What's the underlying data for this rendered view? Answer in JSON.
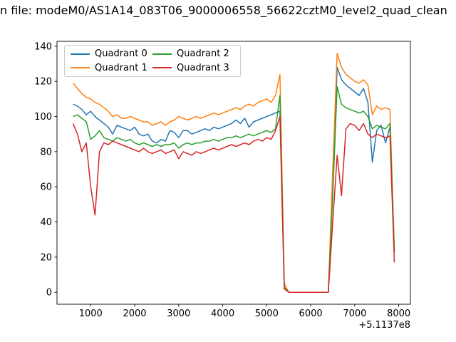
{
  "chart_data": {
    "type": "line",
    "title": "n file: modeM0/AS1A14_083T06_9000006558_56622cztM0_level2_quad_clean",
    "x_offset_label": "+5.1137e8",
    "xlabel": "",
    "ylabel": "",
    "xlim": [
      235,
      8265
    ],
    "ylim": [
      -6.8,
      142.8
    ],
    "x_ticks": [
      1000,
      2000,
      3000,
      4000,
      5000,
      6000,
      7000,
      8000
    ],
    "y_ticks": [
      0,
      20,
      40,
      60,
      80,
      100,
      120,
      140
    ],
    "grid": false,
    "legend_position": "upper left",
    "x": [
      600,
      700,
      800,
      900,
      1000,
      1100,
      1200,
      1300,
      1400,
      1500,
      1600,
      1700,
      1800,
      1900,
      2000,
      2100,
      2200,
      2300,
      2400,
      2500,
      2600,
      2700,
      2800,
      2900,
      3000,
      3100,
      3200,
      3300,
      3400,
      3500,
      3600,
      3700,
      3800,
      3900,
      4000,
      4100,
      4200,
      4300,
      4400,
      4500,
      4600,
      4700,
      4800,
      4900,
      5000,
      5100,
      5200,
      5300,
      5400,
      5500,
      5600,
      5700,
      5800,
      5900,
      6000,
      6100,
      6200,
      6300,
      6400,
      6500,
      6600,
      6700,
      6800,
      6900,
      7000,
      7100,
      7200,
      7300,
      7400,
      7500,
      7600,
      7700,
      7800,
      7900
    ],
    "series": [
      {
        "name": "Quadrant 0",
        "color": "#1f77b4",
        "values": [
          107,
          106,
          104,
          101,
          103,
          100,
          98,
          96,
          94,
          90,
          95,
          94,
          93,
          92,
          94,
          90,
          89,
          90,
          86,
          85,
          87,
          86,
          92,
          91,
          88,
          92,
          92,
          90,
          91,
          92,
          93,
          92,
          94,
          93,
          94,
          95,
          96,
          98,
          96,
          99,
          94,
          97,
          98,
          99,
          100,
          101,
          102,
          103,
          2,
          0,
          0,
          0,
          0,
          0,
          0,
          0,
          0,
          0,
          0,
          60,
          128,
          121,
          118,
          116,
          114,
          112,
          116,
          108,
          74,
          92,
          95,
          85,
          94,
          23
        ]
      },
      {
        "name": "Quadrant 1",
        "color": "#ff7f0e",
        "values": [
          119,
          116,
          113,
          111,
          110,
          108,
          107,
          105,
          103,
          100,
          101,
          99,
          99,
          100,
          99,
          98,
          97,
          97,
          95,
          96,
          97,
          95,
          97,
          98,
          100,
          99,
          98,
          99,
          100,
          99,
          100,
          101,
          102,
          101,
          102,
          103,
          104,
          105,
          104,
          106,
          107,
          106,
          108,
          109,
          110,
          108,
          112,
          124,
          5,
          0,
          0,
          0,
          0,
          0,
          0,
          0,
          0,
          0,
          0,
          70,
          136,
          128,
          124,
          122,
          120,
          119,
          121,
          118,
          101,
          106,
          104,
          105,
          104,
          23
        ]
      },
      {
        "name": "Quadrant 2",
        "color": "#2ca02c",
        "values": [
          100,
          101,
          99,
          97,
          87,
          89,
          92,
          88,
          87,
          86,
          88,
          87,
          86,
          87,
          85,
          84,
          85,
          84,
          83,
          84,
          83,
          84,
          84,
          85,
          82,
          84,
          85,
          84,
          85,
          85,
          86,
          86,
          87,
          86,
          87,
          88,
          88,
          89,
          88,
          89,
          90,
          89,
          90,
          91,
          92,
          91,
          93,
          112,
          3,
          0,
          0,
          0,
          0,
          0,
          0,
          0,
          0,
          0,
          0,
          55,
          117,
          107,
          105,
          104,
          103,
          102,
          103,
          100,
          93,
          95,
          94,
          93,
          96,
          23
        ]
      },
      {
        "name": "Quadrant 3",
        "color": "#d62728",
        "values": [
          96,
          90,
          80,
          85,
          60,
          44,
          80,
          85,
          84,
          86,
          85,
          84,
          83,
          82,
          81,
          80,
          82,
          80,
          79,
          80,
          81,
          79,
          80,
          81,
          76,
          80,
          79,
          78,
          80,
          79,
          80,
          81,
          82,
          81,
          82,
          83,
          84,
          83,
          84,
          85,
          84,
          86,
          87,
          86,
          88,
          87,
          92,
          100,
          2,
          0,
          0,
          0,
          0,
          0,
          0,
          0,
          0,
          0,
          0,
          40,
          78,
          55,
          93,
          96,
          95,
          92,
          96,
          90,
          88,
          90,
          89,
          88,
          89,
          17
        ]
      }
    ]
  }
}
